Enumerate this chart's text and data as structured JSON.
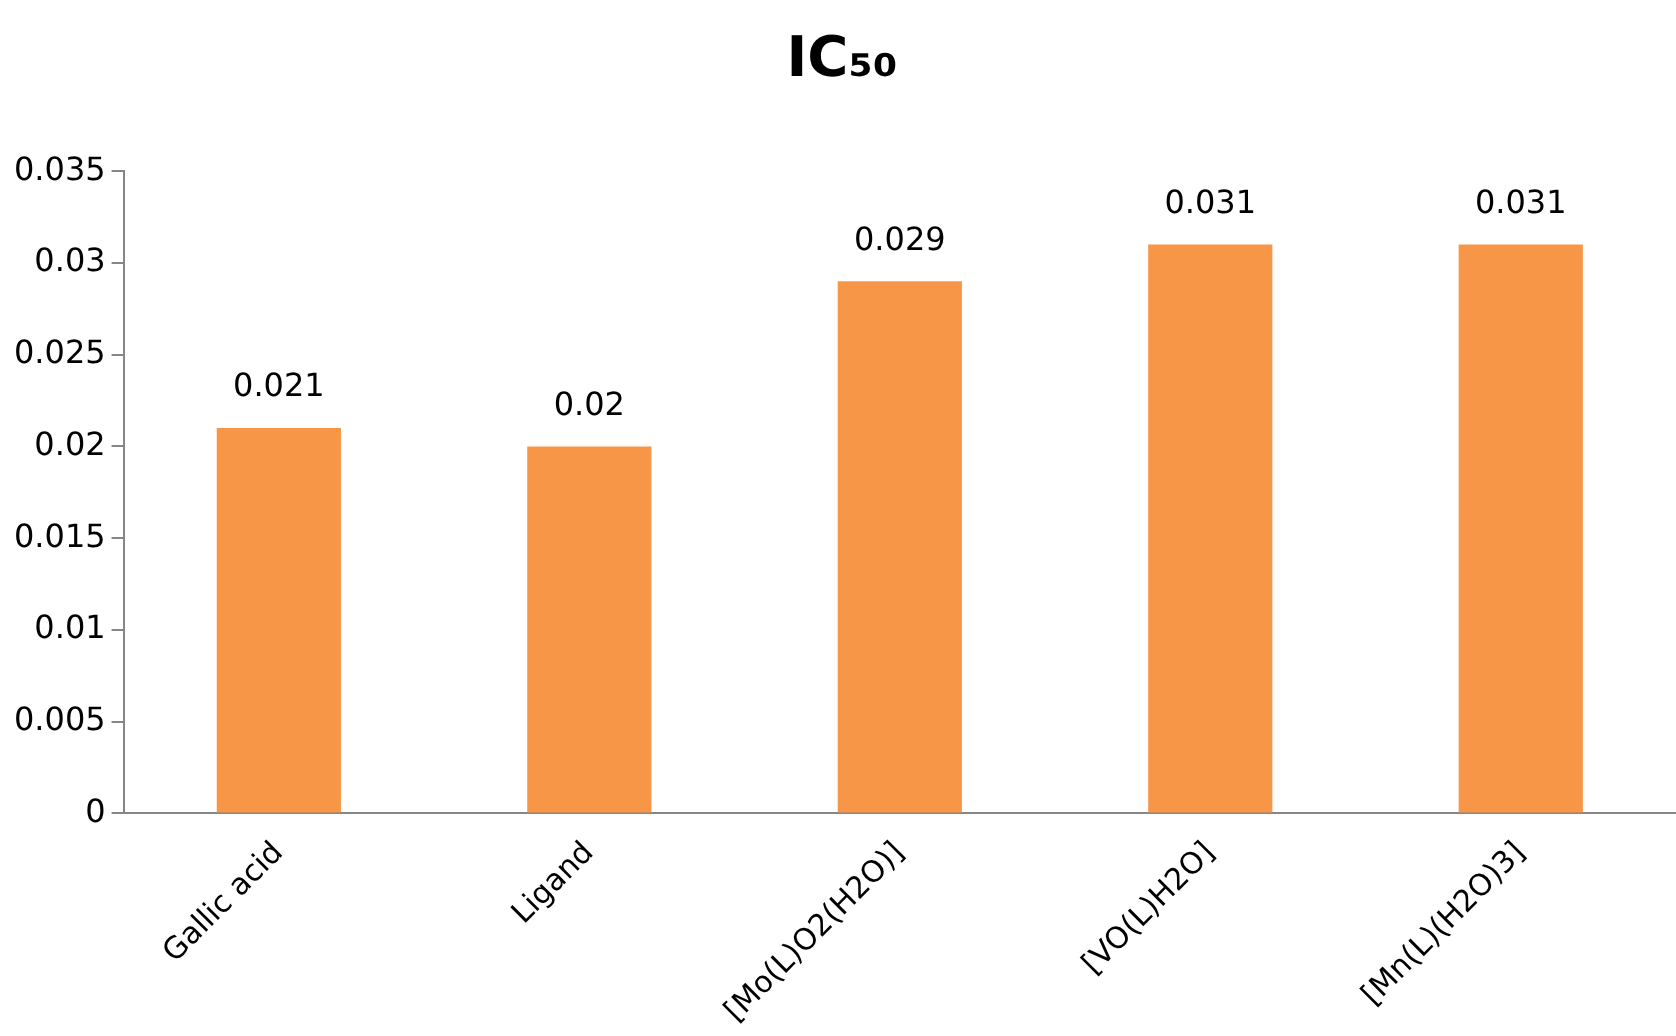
{
  "chart_data": {
    "type": "bar",
    "title": "IC₅₀",
    "categories": [
      "Gallic acid",
      "Ligand",
      "[Mo(L)O2(H2O)]",
      "[VO(L)H2O]",
      "[Mn(L)(H2O)3]"
    ],
    "values": [
      0.021,
      0.02,
      0.029,
      0.031,
      0.031
    ],
    "color": "#f79646",
    "ylim": [
      0,
      0.035
    ],
    "yticks": [
      0,
      0.005,
      0.01,
      0.015,
      0.02,
      0.025,
      0.03,
      0.035
    ],
    "grid": false,
    "legend": false,
    "data_labels": true
  }
}
